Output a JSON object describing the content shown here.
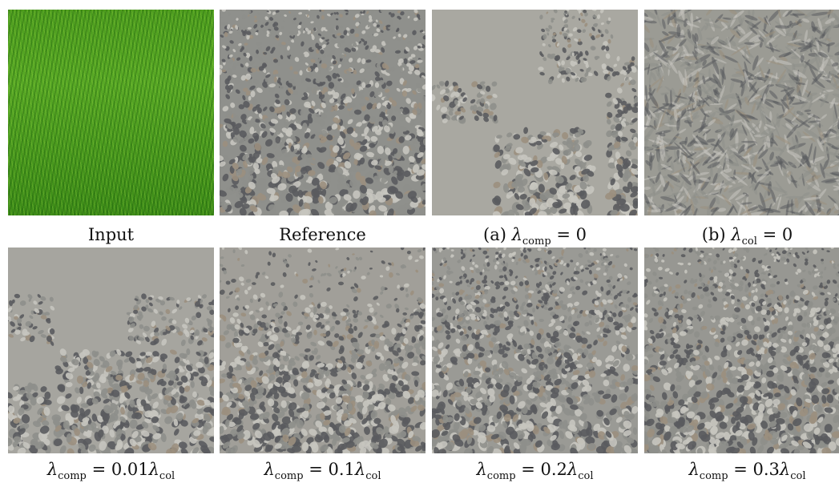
{
  "figure": {
    "rows": [
      {
        "panels": [
          {
            "id": "input",
            "texture": "grass",
            "caption": "Input"
          },
          {
            "id": "reference",
            "texture": "gravel",
            "caption": "Reference"
          },
          {
            "id": "a",
            "texture": "gravel-patchy",
            "caption_prefix": "(a)",
            "symbol": "λ",
            "sub": "comp",
            "rhs": "= 0"
          },
          {
            "id": "b",
            "texture": "gravel-swirl",
            "caption_prefix": "(b)",
            "symbol": "λ",
            "sub": "col",
            "rhs": "= 0"
          }
        ]
      },
      {
        "panels": [
          {
            "id": "c1",
            "texture": "gravel-sparse",
            "symbol": "λ",
            "sub": "comp",
            "rhs": "= 0.01",
            "rhs_symbol": "λ",
            "rhs_sub": "col"
          },
          {
            "id": "c2",
            "texture": "gravel-medium",
            "symbol": "λ",
            "sub": "comp",
            "rhs": "= 0.1",
            "rhs_symbol": "λ",
            "rhs_sub": "col"
          },
          {
            "id": "c3",
            "texture": "gravel",
            "symbol": "λ",
            "sub": "comp",
            "rhs": "= 0.2",
            "rhs_symbol": "λ",
            "rhs_sub": "col"
          },
          {
            "id": "c4",
            "texture": "gravel",
            "symbol": "λ",
            "sub": "comp",
            "rhs": "= 0.3",
            "rhs_symbol": "λ",
            "rhs_sub": "col"
          }
        ]
      }
    ],
    "colors": {
      "grass": "#4e9e1f",
      "gravel": "#8c8d8a",
      "sand": "#a3a29c",
      "stone_dark": "#55565a",
      "stone_light": "#c9c8c2"
    }
  }
}
